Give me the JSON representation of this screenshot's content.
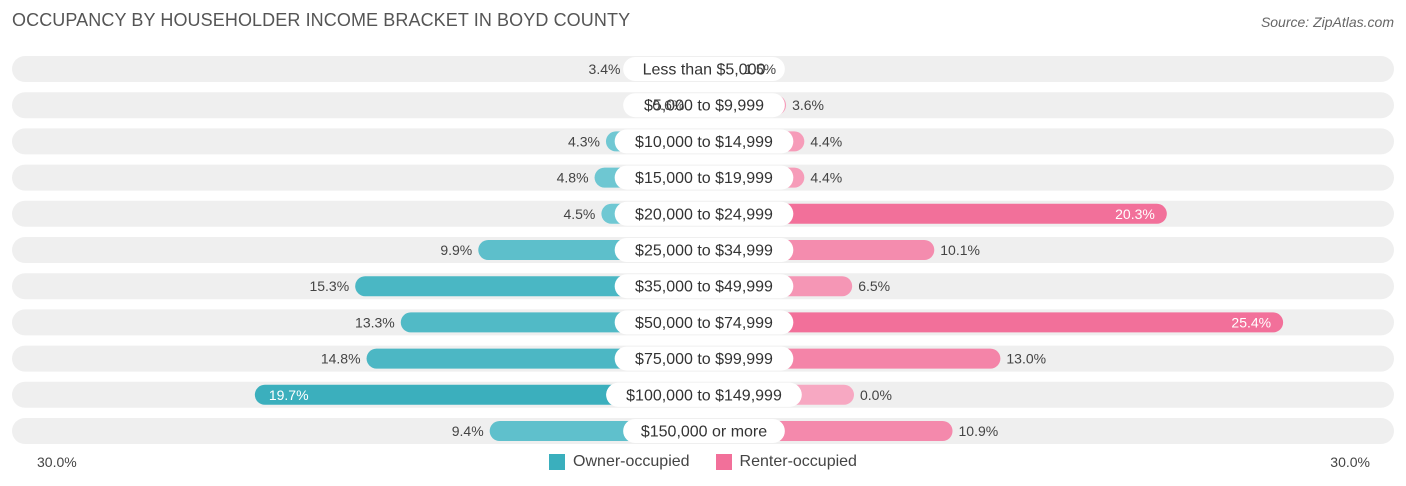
{
  "title": "OCCUPANCY BY HOUSEHOLDER INCOME BRACKET IN BOYD COUNTY",
  "source": "Source: ZipAtlas.com",
  "colors": {
    "owner": "#3aafbd",
    "owner_light": "#7fcfd9",
    "renter": "#f2709a",
    "renter_light": "#f7a8c2",
    "track": "#efefef"
  },
  "chart_data": {
    "type": "bar",
    "orientation": "diverging-horizontal",
    "title": "OCCUPANCY BY HOUSEHOLDER INCOME BRACKET IN BOYD COUNTY",
    "categories": [
      "Less than $5,000",
      "$5,000 to $9,999",
      "$10,000 to $14,999",
      "$15,000 to $19,999",
      "$20,000 to $24,999",
      "$25,000 to $34,999",
      "$35,000 to $49,999",
      "$50,000 to $74,999",
      "$75,000 to $99,999",
      "$100,000 to $149,999",
      "$150,000 or more"
    ],
    "series": [
      {
        "name": "Owner-occupied",
        "values": [
          3.4,
          0.6,
          4.3,
          4.8,
          4.5,
          9.9,
          15.3,
          13.3,
          14.8,
          19.7,
          9.4
        ],
        "labels": [
          "3.4%",
          "0.6%",
          "4.3%",
          "4.8%",
          "4.5%",
          "9.9%",
          "15.3%",
          "13.3%",
          "14.8%",
          "19.7%",
          "9.4%"
        ]
      },
      {
        "name": "Renter-occupied",
        "values": [
          1.5,
          3.6,
          4.4,
          4.4,
          20.3,
          10.1,
          6.5,
          25.4,
          13.0,
          0.0,
          10.9
        ],
        "labels": [
          "1.5%",
          "3.6%",
          "4.4%",
          "4.4%",
          "20.3%",
          "10.1%",
          "6.5%",
          "25.4%",
          "13.0%",
          "0.0%",
          "10.9%"
        ]
      }
    ],
    "xlim": [
      -30,
      30
    ],
    "axis_labels": {
      "left": "30.0%",
      "right": "30.0%"
    },
    "legend": [
      "Owner-occupied",
      "Renter-occupied"
    ]
  }
}
